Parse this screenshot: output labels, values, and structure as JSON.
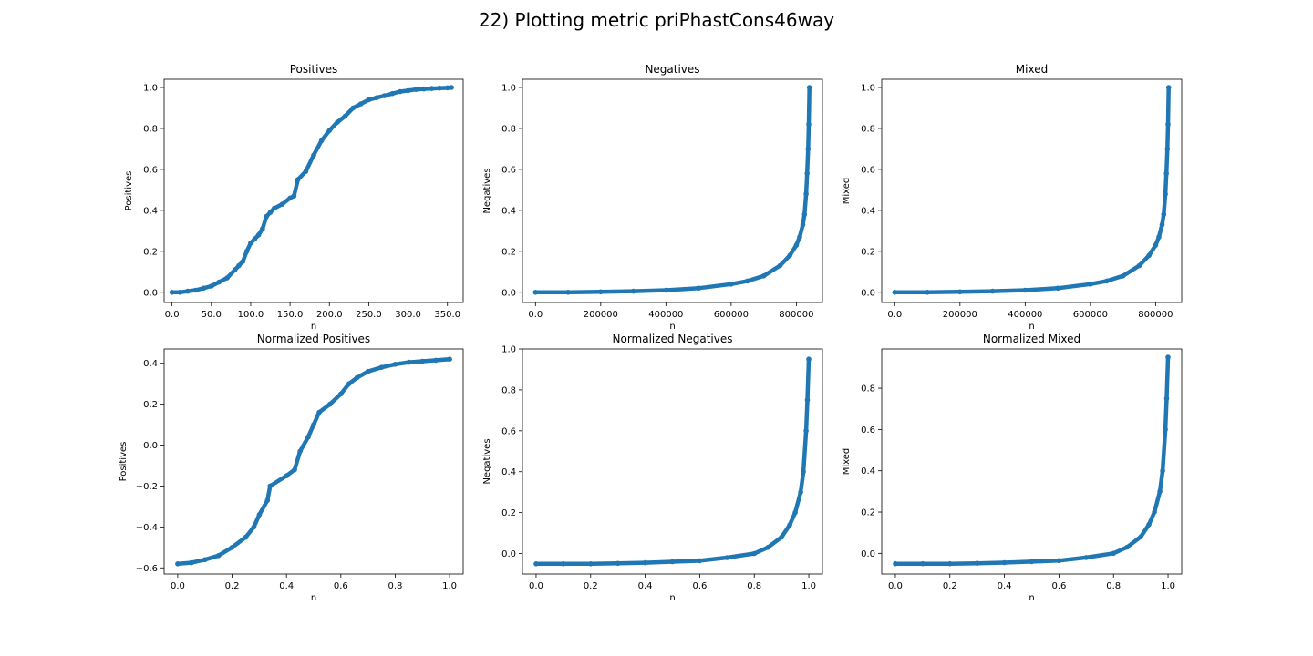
{
  "figure": {
    "suptitle": "22) Plotting metric priPhastCons46way"
  },
  "colors": {
    "marker": "#1f77b4",
    "axis": "#000000",
    "background": "#ffffff"
  },
  "chart_data": [
    {
      "type": "scatter",
      "title": "Positives",
      "xlabel": "n",
      "ylabel": "Positives",
      "xlim": [
        -10,
        370
      ],
      "ylim": [
        -0.05,
        1.04
      ],
      "xticks": [
        0,
        50,
        100,
        150,
        200,
        250,
        300,
        350
      ],
      "yticks": [
        0.0,
        0.2,
        0.4,
        0.6,
        0.8,
        1.0
      ],
      "tick_decimals": 1,
      "grid": false,
      "legend": "none",
      "points": [
        [
          0,
          0.0
        ],
        [
          10,
          0.0
        ],
        [
          20,
          0.005
        ],
        [
          30,
          0.01
        ],
        [
          40,
          0.02
        ],
        [
          50,
          0.03
        ],
        [
          60,
          0.05
        ],
        [
          70,
          0.07
        ],
        [
          80,
          0.11
        ],
        [
          85,
          0.13
        ],
        [
          90,
          0.15
        ],
        [
          95,
          0.2
        ],
        [
          100,
          0.24
        ],
        [
          105,
          0.26
        ],
        [
          110,
          0.28
        ],
        [
          115,
          0.31
        ],
        [
          120,
          0.37
        ],
        [
          125,
          0.39
        ],
        [
          130,
          0.41
        ],
        [
          140,
          0.43
        ],
        [
          150,
          0.46
        ],
        [
          155,
          0.47
        ],
        [
          160,
          0.55
        ],
        [
          170,
          0.59
        ],
        [
          180,
          0.67
        ],
        [
          190,
          0.74
        ],
        [
          200,
          0.79
        ],
        [
          210,
          0.83
        ],
        [
          220,
          0.86
        ],
        [
          230,
          0.9
        ],
        [
          240,
          0.92
        ],
        [
          250,
          0.94
        ],
        [
          260,
          0.95
        ],
        [
          270,
          0.96
        ],
        [
          280,
          0.97
        ],
        [
          290,
          0.98
        ],
        [
          300,
          0.985
        ],
        [
          310,
          0.99
        ],
        [
          320,
          0.993
        ],
        [
          330,
          0.995
        ],
        [
          340,
          0.997
        ],
        [
          350,
          0.998
        ],
        [
          355,
          1.0
        ]
      ]
    },
    {
      "type": "scatter",
      "title": "Negatives",
      "xlabel": "n",
      "ylabel": "Negatives",
      "xlim": [
        -40000,
        880000
      ],
      "ylim": [
        -0.05,
        1.04
      ],
      "xticks": [
        0,
        200000,
        400000,
        600000,
        800000
      ],
      "yticks": [
        0.0,
        0.2,
        0.4,
        0.6,
        0.8,
        1.0
      ],
      "tick_decimals": 1,
      "grid": false,
      "legend": "none",
      "points": [
        [
          0,
          0.0
        ],
        [
          100000,
          0.0
        ],
        [
          200000,
          0.002
        ],
        [
          300000,
          0.005
        ],
        [
          400000,
          0.01
        ],
        [
          500000,
          0.02
        ],
        [
          600000,
          0.04
        ],
        [
          650000,
          0.055
        ],
        [
          700000,
          0.08
        ],
        [
          750000,
          0.13
        ],
        [
          780000,
          0.18
        ],
        [
          800000,
          0.23
        ],
        [
          810000,
          0.27
        ],
        [
          820000,
          0.33
        ],
        [
          825000,
          0.38
        ],
        [
          830000,
          0.48
        ],
        [
          833000,
          0.58
        ],
        [
          836000,
          0.7
        ],
        [
          838000,
          0.82
        ],
        [
          840000,
          1.0
        ]
      ]
    },
    {
      "type": "scatter",
      "title": "Mixed",
      "xlabel": "n",
      "ylabel": "Mixed",
      "xlim": [
        -40000,
        880000
      ],
      "ylim": [
        -0.05,
        1.04
      ],
      "xticks": [
        0,
        200000,
        400000,
        600000,
        800000
      ],
      "yticks": [
        0.0,
        0.2,
        0.4,
        0.6,
        0.8,
        1.0
      ],
      "tick_decimals": 1,
      "grid": false,
      "legend": "none",
      "points": [
        [
          0,
          0.0
        ],
        [
          100000,
          0.0
        ],
        [
          200000,
          0.002
        ],
        [
          300000,
          0.005
        ],
        [
          400000,
          0.01
        ],
        [
          500000,
          0.02
        ],
        [
          600000,
          0.04
        ],
        [
          650000,
          0.055
        ],
        [
          700000,
          0.08
        ],
        [
          750000,
          0.13
        ],
        [
          780000,
          0.18
        ],
        [
          800000,
          0.23
        ],
        [
          810000,
          0.27
        ],
        [
          820000,
          0.33
        ],
        [
          825000,
          0.38
        ],
        [
          830000,
          0.48
        ],
        [
          833000,
          0.58
        ],
        [
          836000,
          0.7
        ],
        [
          838000,
          0.82
        ],
        [
          840000,
          1.0
        ]
      ]
    },
    {
      "type": "scatter",
      "title": "Normalized Positives",
      "xlabel": "n",
      "ylabel": "Positives",
      "xlim": [
        -0.05,
        1.05
      ],
      "ylim": [
        -0.63,
        0.47
      ],
      "xticks": [
        0.0,
        0.2,
        0.4,
        0.6,
        0.8,
        1.0
      ],
      "yticks": [
        -0.6,
        -0.4,
        -0.2,
        0.0,
        0.2,
        0.4
      ],
      "tick_decimals": 1,
      "grid": false,
      "legend": "none",
      "points": [
        [
          0.0,
          -0.58
        ],
        [
          0.05,
          -0.575
        ],
        [
          0.1,
          -0.56
        ],
        [
          0.15,
          -0.54
        ],
        [
          0.2,
          -0.5
        ],
        [
          0.25,
          -0.45
        ],
        [
          0.28,
          -0.4
        ],
        [
          0.3,
          -0.34
        ],
        [
          0.33,
          -0.27
        ],
        [
          0.34,
          -0.2
        ],
        [
          0.4,
          -0.15
        ],
        [
          0.43,
          -0.12
        ],
        [
          0.45,
          -0.03
        ],
        [
          0.48,
          0.04
        ],
        [
          0.5,
          0.1
        ],
        [
          0.52,
          0.16
        ],
        [
          0.56,
          0.2
        ],
        [
          0.6,
          0.25
        ],
        [
          0.63,
          0.3
        ],
        [
          0.66,
          0.33
        ],
        [
          0.7,
          0.36
        ],
        [
          0.75,
          0.38
        ],
        [
          0.8,
          0.395
        ],
        [
          0.85,
          0.405
        ],
        [
          0.9,
          0.41
        ],
        [
          0.95,
          0.415
        ],
        [
          1.0,
          0.42
        ]
      ]
    },
    {
      "type": "scatter",
      "title": "Normalized Negatives",
      "xlabel": "n",
      "ylabel": "Negatives",
      "xlim": [
        -0.05,
        1.05
      ],
      "ylim": [
        -0.1,
        1.0
      ],
      "xticks": [
        0.0,
        0.2,
        0.4,
        0.6,
        0.8,
        1.0
      ],
      "yticks": [
        0.0,
        0.2,
        0.4,
        0.6,
        0.8,
        1.0
      ],
      "tick_decimals": 1,
      "grid": false,
      "legend": "none",
      "points": [
        [
          0.0,
          -0.05
        ],
        [
          0.1,
          -0.05
        ],
        [
          0.2,
          -0.05
        ],
        [
          0.3,
          -0.048
        ],
        [
          0.4,
          -0.045
        ],
        [
          0.5,
          -0.04
        ],
        [
          0.6,
          -0.035
        ],
        [
          0.7,
          -0.02
        ],
        [
          0.8,
          0.0
        ],
        [
          0.85,
          0.03
        ],
        [
          0.9,
          0.08
        ],
        [
          0.93,
          0.14
        ],
        [
          0.95,
          0.2
        ],
        [
          0.97,
          0.3
        ],
        [
          0.98,
          0.4
        ],
        [
          0.99,
          0.6
        ],
        [
          0.995,
          0.75
        ],
        [
          1.0,
          0.95
        ]
      ]
    },
    {
      "type": "scatter",
      "title": "Normalized Mixed",
      "xlabel": "n",
      "ylabel": "Mixed",
      "xlim": [
        -0.05,
        1.05
      ],
      "ylim": [
        -0.1,
        0.99
      ],
      "xticks": [
        0.0,
        0.2,
        0.4,
        0.6,
        0.8,
        1.0
      ],
      "yticks": [
        0.0,
        0.2,
        0.4,
        0.6,
        0.8
      ],
      "tick_decimals": 1,
      "grid": false,
      "legend": "none",
      "points": [
        [
          0.0,
          -0.05
        ],
        [
          0.1,
          -0.05
        ],
        [
          0.2,
          -0.05
        ],
        [
          0.3,
          -0.048
        ],
        [
          0.4,
          -0.045
        ],
        [
          0.5,
          -0.04
        ],
        [
          0.6,
          -0.035
        ],
        [
          0.7,
          -0.02
        ],
        [
          0.8,
          0.0
        ],
        [
          0.85,
          0.03
        ],
        [
          0.9,
          0.08
        ],
        [
          0.93,
          0.14
        ],
        [
          0.95,
          0.2
        ],
        [
          0.97,
          0.3
        ],
        [
          0.98,
          0.4
        ],
        [
          0.99,
          0.6
        ],
        [
          0.995,
          0.75
        ],
        [
          1.0,
          0.95
        ]
      ]
    }
  ]
}
